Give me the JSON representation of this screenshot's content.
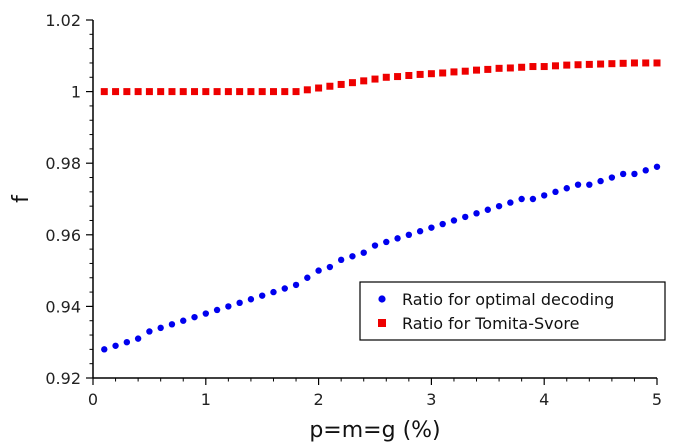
{
  "chart_data": {
    "type": "scatter",
    "title": "",
    "xlabel": "p=m=g (%)",
    "ylabel": "f",
    "xlim": [
      0,
      5
    ],
    "ylim": [
      0.92,
      1.02
    ],
    "x_ticks": [
      0,
      1,
      2,
      3,
      4,
      5
    ],
    "x_tick_labels": [
      "0",
      "1",
      "2",
      "3",
      "4",
      "5"
    ],
    "y_ticks": [
      0.92,
      0.94,
      0.96,
      0.98,
      1.0,
      1.02
    ],
    "y_tick_labels": [
      "0.92",
      "0.94",
      "0.96",
      "0.98",
      "1",
      "1.02"
    ],
    "grid": false,
    "legend_position": "bottom-right",
    "series": [
      {
        "name": "Ratio for optimal decoding",
        "marker": "circle",
        "color": "#0000ee",
        "x": [
          0.1,
          0.2,
          0.3,
          0.4,
          0.5,
          0.6,
          0.7,
          0.8,
          0.9,
          1.0,
          1.1,
          1.2,
          1.3,
          1.4,
          1.5,
          1.6,
          1.7,
          1.8,
          1.9,
          2.0,
          2.1,
          2.2,
          2.3,
          2.4,
          2.5,
          2.6,
          2.7,
          2.8,
          2.9,
          3.0,
          3.1,
          3.2,
          3.3,
          3.4,
          3.5,
          3.6,
          3.7,
          3.8,
          3.9,
          4.0,
          4.1,
          4.2,
          4.3,
          4.4,
          4.5,
          4.6,
          4.7,
          4.8,
          4.9,
          5.0
        ],
        "y": [
          0.928,
          0.929,
          0.93,
          0.931,
          0.933,
          0.934,
          0.935,
          0.936,
          0.937,
          0.938,
          0.939,
          0.94,
          0.941,
          0.942,
          0.943,
          0.944,
          0.945,
          0.946,
          0.948,
          0.95,
          0.951,
          0.953,
          0.954,
          0.955,
          0.957,
          0.958,
          0.959,
          0.96,
          0.961,
          0.962,
          0.963,
          0.964,
          0.965,
          0.966,
          0.967,
          0.968,
          0.969,
          0.97,
          0.97,
          0.971,
          0.972,
          0.973,
          0.974,
          0.974,
          0.975,
          0.976,
          0.977,
          0.977,
          0.978,
          0.979
        ]
      },
      {
        "name": "Ratio for Tomita-Svore",
        "marker": "square",
        "color": "#ee0000",
        "x": [
          0.1,
          0.2,
          0.3,
          0.4,
          0.5,
          0.6,
          0.7,
          0.8,
          0.9,
          1.0,
          1.1,
          1.2,
          1.3,
          1.4,
          1.5,
          1.6,
          1.7,
          1.8,
          1.9,
          2.0,
          2.1,
          2.2,
          2.3,
          2.4,
          2.5,
          2.6,
          2.7,
          2.8,
          2.9,
          3.0,
          3.1,
          3.2,
          3.3,
          3.4,
          3.5,
          3.6,
          3.7,
          3.8,
          3.9,
          4.0,
          4.1,
          4.2,
          4.3,
          4.4,
          4.5,
          4.6,
          4.7,
          4.8,
          4.9,
          5.0
        ],
        "y": [
          1.0,
          1.0,
          1.0,
          1.0,
          1.0,
          1.0,
          1.0,
          1.0,
          1.0,
          1.0,
          1.0,
          1.0,
          1.0,
          1.0,
          1.0,
          1.0,
          1.0,
          1.0,
          1.0005,
          1.001,
          1.0015,
          1.002,
          1.0025,
          1.003,
          1.0035,
          1.004,
          1.0042,
          1.0045,
          1.0048,
          1.005,
          1.0052,
          1.0055,
          1.0057,
          1.006,
          1.0062,
          1.0065,
          1.0066,
          1.0068,
          1.007,
          1.007,
          1.0072,
          1.0074,
          1.0075,
          1.0076,
          1.0077,
          1.0078,
          1.0079,
          1.008,
          1.008,
          1.008
        ]
      }
    ]
  }
}
